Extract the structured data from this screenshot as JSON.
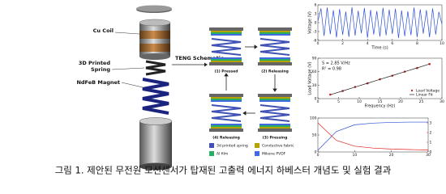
{
  "diagram": {
    "cu_coil": "Cu Coil",
    "spring": [
      "3D Printed",
      "Spring"
    ],
    "magnet": "NdFeB Magnet",
    "schematic": "TENG Schematic",
    "steps": [
      "(1) Pressed",
      "(2) Releasing",
      "(3) Pressing",
      "(4) Releasing"
    ],
    "legend": [
      {
        "label": "3d printed spring",
        "color": "#3f51b5"
      },
      {
        "label": "Conductive fabric",
        "color": "#b5a300"
      },
      {
        "label": "Al film",
        "color": "#27ae60"
      },
      {
        "label": "Mikene PVDF",
        "color": "#4169e1"
      }
    ]
  },
  "chart_data": [
    {
      "type": "line",
      "xlabel": "Time (s)",
      "ylabel": "Voltage (V)",
      "x": [
        0,
        0.25,
        0.5,
        0.75,
        1,
        1.25,
        1.5,
        1.75,
        2,
        2.25,
        2.5,
        2.75,
        3,
        3.25,
        3.5,
        3.75,
        4,
        4.25,
        4.5,
        4.75,
        5,
        5.25,
        5.5,
        5.75,
        6,
        6.25,
        6.5,
        6.75,
        7,
        7.25,
        7.5,
        7.75,
        8,
        8.25,
        8.5,
        8.75,
        9,
        9.25,
        9.5,
        9.75,
        10
      ],
      "series": [
        {
          "color": "#2b4fd6",
          "type": "line",
          "values": [
            0.5,
            4.8,
            -4.5,
            5.1,
            -3.9,
            4.2,
            -5.0,
            4.6,
            -4.1,
            3.7,
            -4.8,
            5.2,
            -4.4,
            4.0,
            -3.6,
            4.9,
            -5.1,
            4.3,
            -4.0,
            3.9,
            -4.7,
            5.0,
            -4.3,
            4.4,
            -3.8,
            4.7,
            -5.2,
            4.1,
            -4.6,
            3.8,
            -4.2,
            5.1,
            -4.9,
            4.5,
            -3.7,
            4.2,
            -4.9,
            4.8,
            -4.0,
            3.6,
            -0.5
          ]
        }
      ],
      "xlim": [
        0,
        10
      ],
      "xticks": [
        0,
        2,
        4,
        6,
        8,
        10
      ],
      "ylim": [
        -6,
        6
      ],
      "yticks": [
        -6,
        -3,
        0,
        3,
        6
      ]
    },
    {
      "type": "scatter",
      "xlabel": "Frequency (Hz)",
      "ylabel": "Load Voltage (V)",
      "annotations": [
        "S = 2.85 V/Hz",
        "R² = 0.98"
      ],
      "x": [
        3,
        6,
        9,
        12,
        15,
        18,
        21,
        24,
        27
      ],
      "series": [
        {
          "name": "Load Voltage",
          "color": "#d62728",
          "type": "scatter",
          "values": [
            9,
            17,
            26,
            34,
            43,
            51,
            60,
            68,
            77
          ]
        },
        {
          "name": "Linear Fit",
          "color": "#222222",
          "type": "line",
          "values": [
            8.6,
            17.1,
            25.7,
            34.2,
            42.8,
            51.3,
            59.9,
            68.4,
            77.0
          ]
        }
      ],
      "xlim": [
        0,
        30
      ],
      "xticks": [
        0,
        5,
        10,
        15,
        20,
        25,
        30
      ],
      "ylim": [
        0,
        90
      ],
      "yticks": [
        0,
        30,
        60,
        90
      ]
    },
    {
      "type": "line",
      "x": [
        0,
        5,
        10,
        15,
        20,
        25,
        30
      ],
      "series": [
        {
          "color": "#2b4fd6",
          "type": "line",
          "values": [
            5,
            60,
            80,
            85,
            87,
            88,
            88
          ]
        },
        {
          "color": "#e02020",
          "type": "line",
          "axis": "y2",
          "values": [
            3.0,
            1.2,
            0.6,
            0.4,
            0.3,
            0.25,
            0.2
          ]
        }
      ],
      "xlim": [
        0,
        30
      ],
      "xticks": [
        0,
        10,
        20,
        30
      ],
      "ylim": [
        0,
        100
      ],
      "yticks": [
        0,
        50,
        100
      ],
      "y2lim": [
        0,
        3.5
      ],
      "y2ticks": [
        0,
        1,
        2,
        3
      ]
    }
  ],
  "caption": "그림 1. 제안된 무전원 모션센서가 탑재된 고출력 에너지 하베스터 개념도 및 실험 결과"
}
